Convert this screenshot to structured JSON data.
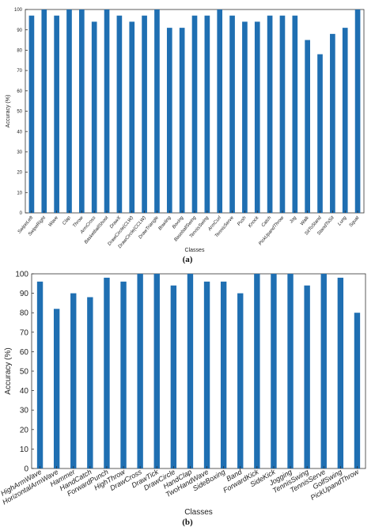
{
  "captions": {
    "a": "(a)",
    "b": "(b)"
  },
  "colors": {
    "bar": "#1f6fb2",
    "axis": "#333333"
  },
  "chart_data": [
    {
      "type": "bar",
      "title": "",
      "xlabel": "Classes",
      "ylabel": "Accuracy (%)",
      "ylim": [
        0,
        100
      ],
      "yticks": [
        0,
        10,
        20,
        30,
        40,
        50,
        60,
        70,
        80,
        90,
        100
      ],
      "ytick_format": "{v}",
      "grid": false,
      "categories": [
        "SwipeLeft",
        "SwipeRight",
        "Wave",
        "Clap",
        "Throw",
        "ArmCross",
        "BasketballShoot",
        "DrawX",
        "DrawCircle(CLW)",
        "DrawCircle(CCLW)",
        "DrawTriangle",
        "Bowling",
        "Boxing",
        "BaseballSwing",
        "TennisSwing",
        "ArmCurl",
        "TennisServe",
        "Push",
        "Knock",
        "Catch",
        "PickUpandThrow",
        "Jog",
        "Walk",
        "SitToStand",
        "StandToSit",
        "Lung",
        "Squat"
      ],
      "values": [
        97,
        100,
        97,
        100,
        100,
        94,
        100,
        97,
        94,
        97,
        100,
        91,
        91,
        97,
        97,
        100,
        97,
        94,
        94,
        97,
        97,
        97,
        85,
        78,
        88,
        91,
        100
      ]
    },
    {
      "type": "bar",
      "title": "",
      "xlabel": "Classes",
      "ylabel": "Accuracy (%)",
      "ylim": [
        0,
        100
      ],
      "yticks": [
        0,
        10,
        20,
        30,
        40,
        50,
        60,
        70,
        80,
        90,
        100
      ],
      "ytick_format": "{v}",
      "grid": false,
      "categories": [
        "HighArmWave",
        "HorizontalArmWave",
        "Hammer",
        "HandCatch",
        "ForwardPunch",
        "HighThrow",
        "DrawCross",
        "DrawTick",
        "DrawCircle",
        "HandClap",
        "TwoHandWave",
        "SideBoxing",
        "Band",
        "ForwardKick",
        "SideKick",
        "Jogging",
        "TennisSwing",
        "TennisServe",
        "GolfSwing",
        "PickUpandThrow"
      ],
      "values": [
        96,
        82,
        90,
        88,
        98,
        96,
        100,
        100,
        94,
        100,
        96,
        96,
        90,
        100,
        100,
        100,
        94,
        100,
        98,
        80
      ]
    }
  ]
}
